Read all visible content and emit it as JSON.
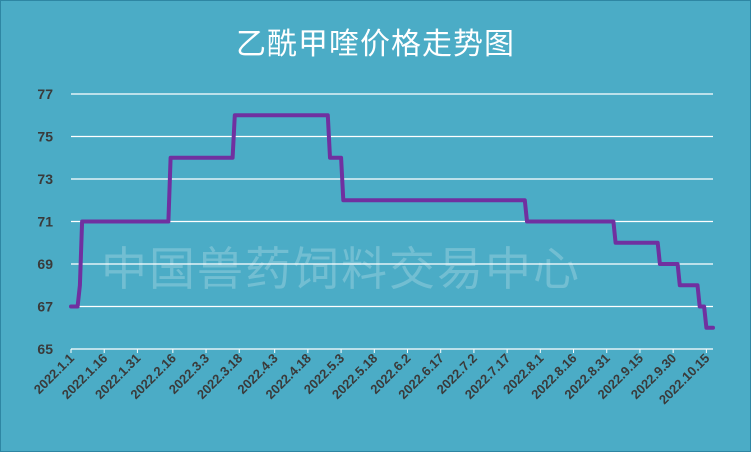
{
  "chart_data": {
    "type": "line",
    "title": "乙酰甲喹价格走势图",
    "watermark": "中国兽药饲料交易中心",
    "xlabel": "",
    "ylabel": "",
    "ylim": [
      65,
      77
    ],
    "yticks": [
      65,
      67,
      69,
      71,
      73,
      75,
      77
    ],
    "x_tick_labels": [
      "2022.1.1",
      "2022.1.16",
      "2022.1.31",
      "2022.2.16",
      "2022.3.3",
      "2022.3.18",
      "2022.4.3",
      "2022.4.18",
      "2022.5.3",
      "2022.5.18",
      "2022.6.2",
      "2022.6.17",
      "2022.7.2",
      "2022.7.17",
      "2022.8.1",
      "2022.8.16",
      "2022.8.31",
      "2022.9.15",
      "2022.9.30",
      "2022.10.15"
    ],
    "grid": true,
    "colors": {
      "background": "#4BACC6",
      "line": "#7030A0",
      "grid": "#FFFFFF"
    },
    "series": [
      {
        "step": true,
        "points": [
          [
            "2022.1.1",
            67
          ],
          [
            "2022.1.4",
            67
          ],
          [
            "2022.1.5",
            68
          ],
          [
            "2022.1.6",
            71
          ],
          [
            "2022.2.14",
            71
          ],
          [
            "2022.2.15",
            74
          ],
          [
            "2022.3.15",
            74
          ],
          [
            "2022.3.16",
            76
          ],
          [
            "2022.4.27",
            76
          ],
          [
            "2022.4.28",
            74
          ],
          [
            "2022.5.3",
            74
          ],
          [
            "2022.5.4",
            72
          ],
          [
            "2022.7.25",
            72
          ],
          [
            "2022.7.26",
            71
          ],
          [
            "2022.9.3",
            71
          ],
          [
            "2022.9.4",
            70
          ],
          [
            "2022.9.23",
            70
          ],
          [
            "2022.9.24",
            69
          ],
          [
            "2022.10.2",
            69
          ],
          [
            "2022.10.3",
            68
          ],
          [
            "2022.10.11",
            68
          ],
          [
            "2022.10.12",
            67
          ],
          [
            "2022.10.14",
            67
          ],
          [
            "2022.10.15",
            66
          ],
          [
            "2022.10.18",
            66
          ]
        ]
      }
    ]
  }
}
